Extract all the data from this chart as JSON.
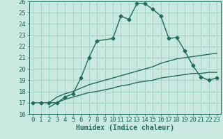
{
  "line1_x": [
    0,
    1,
    2,
    3,
    4,
    5,
    6,
    7,
    8,
    10,
    11,
    12,
    13,
    14,
    15,
    16,
    17,
    18,
    19,
    20,
    21,
    22,
    23
  ],
  "line1_y": [
    17.0,
    17.0,
    17.0,
    17.0,
    17.5,
    17.8,
    19.2,
    21.0,
    22.5,
    22.7,
    24.7,
    24.4,
    25.8,
    25.8,
    25.3,
    24.7,
    22.7,
    22.8,
    21.6,
    20.3,
    19.3,
    19.0,
    19.2
  ],
  "line2_x": [
    2,
    3,
    4,
    5,
    6,
    7,
    8,
    10,
    11,
    12,
    13,
    14,
    15,
    16,
    17,
    18,
    19,
    20,
    21,
    22,
    23
  ],
  "line2_y": [
    17.0,
    17.5,
    17.8,
    18.0,
    18.3,
    18.6,
    18.8,
    19.2,
    19.4,
    19.6,
    19.8,
    20.0,
    20.2,
    20.5,
    20.7,
    20.9,
    21.0,
    21.1,
    21.2,
    21.3,
    21.4
  ],
  "line3_x": [
    2,
    3,
    4,
    5,
    6,
    7,
    8,
    10,
    11,
    12,
    13,
    14,
    15,
    16,
    17,
    18,
    19,
    20,
    21,
    22,
    23
  ],
  "line3_y": [
    16.6,
    17.0,
    17.3,
    17.5,
    17.7,
    17.9,
    18.0,
    18.3,
    18.5,
    18.6,
    18.8,
    18.9,
    19.0,
    19.2,
    19.3,
    19.4,
    19.5,
    19.6,
    19.6,
    19.7,
    19.7
  ],
  "color": "#1e6b5e",
  "bg_color": "#c8e8e0",
  "grid_color": "#9ecfc4",
  "xlabel": "Humidex (Indice chaleur)",
  "xlim": [
    -0.5,
    23.5
  ],
  "ylim": [
    16,
    26
  ],
  "yticks": [
    16,
    17,
    18,
    19,
    20,
    21,
    22,
    23,
    24,
    25,
    26
  ],
  "xticks": [
    0,
    1,
    2,
    3,
    4,
    5,
    6,
    7,
    8,
    9,
    10,
    11,
    12,
    13,
    14,
    15,
    16,
    17,
    18,
    19,
    20,
    21,
    22,
    23
  ],
  "marker": "D",
  "markersize": 2.5,
  "linewidth": 1.0,
  "fontsize": 6.5
}
